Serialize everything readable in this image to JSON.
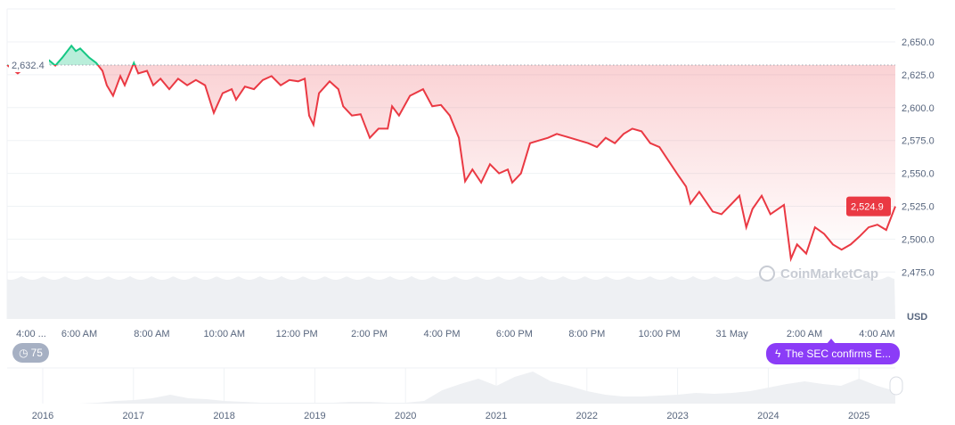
{
  "chart_data": {
    "type": "line",
    "title": "",
    "xlabel": "",
    "ylabel": "USD",
    "ylim": [
      2465,
      2665
    ],
    "y_ticks": [
      "2,650.0",
      "2,625.0",
      "2,600.0",
      "2,575.0",
      "2,550.0",
      "2,525.0",
      "2,500.0",
      "2,475.0"
    ],
    "y_tick_values": [
      2650,
      2625,
      2600,
      2575,
      2550,
      2525,
      2500,
      2475
    ],
    "x_tick_labels": [
      "4:00 ...",
      "6:00 AM",
      "8:00 AM",
      "10:00 AM",
      "12:00 PM",
      "2:00 PM",
      "4:00 PM",
      "6:00 PM",
      "8:00 PM",
      "10:00 PM",
      "31 May",
      "2:00 AM",
      "4:00 AM"
    ],
    "grid": true,
    "reference_value": 2632.4,
    "reference_label": "2,632.4",
    "current_value_label": "2,524.9",
    "colors": {
      "up": "#16c784",
      "down": "#ea3943",
      "event": "#8b3cf7",
      "counter": "#a6b0c3"
    },
    "series": [
      {
        "x": [
          3.33,
          3.62,
          3.99,
          4.48,
          4.65,
          4.84,
          5.09,
          5.21,
          5.33,
          5.58,
          5.77,
          5.94,
          6.06,
          6.23,
          6.43,
          6.55,
          6.8,
          6.92,
          7.16,
          7.33,
          7.53,
          7.77,
          8.01,
          8.26,
          8.5,
          8.75,
          8.99,
          9.23,
          9.48,
          9.6,
          9.84,
          10.09,
          10.33,
          10.57,
          10.82,
          11.06,
          11.3,
          11.48,
          11.6,
          11.72,
          11.87,
          12.16,
          12.4,
          12.53,
          12.77,
          13.01,
          13.26,
          13.5,
          13.75,
          13.87,
          14.06,
          14.36,
          14.72,
          14.97,
          15.21,
          15.45,
          15.7,
          15.87,
          16.07,
          16.31,
          16.55,
          16.8,
          17.04,
          17.16,
          17.4,
          17.65,
          17.89,
          18.14,
          18.38,
          18.75,
          19.24,
          19.48,
          19.72,
          19.97,
          20.21,
          20.45,
          20.7,
          20.94,
          21.19,
          21.43,
          21.67,
          21.92,
          22.04,
          22.28,
          22.65,
          22.89,
          23.14,
          23.38,
          23.57,
          23.74,
          23.99,
          24.23,
          24.6,
          24.79,
          24.96,
          25.21,
          25.45,
          25.7,
          25.94,
          26.18,
          26.43,
          26.67,
          26.92,
          27.16,
          27.4,
          27.65
        ],
        "values": [
          2632.4,
          2626,
          2634,
          2636,
          2632,
          2638,
          2647,
          2643,
          2645,
          2638,
          2634,
          2628,
          2617,
          2609,
          2624,
          2617,
          2634,
          2626,
          2628,
          2617,
          2622,
          2614,
          2622,
          2617,
          2621,
          2617,
          2596,
          2611,
          2614,
          2606,
          2616,
          2614,
          2621,
          2624,
          2617,
          2621,
          2620,
          2622,
          2594,
          2587,
          2611,
          2620,
          2614,
          2601,
          2594,
          2595,
          2577,
          2584,
          2584,
          2601,
          2594,
          2609,
          2614,
          2601,
          2602,
          2594,
          2577,
          2544,
          2553,
          2543,
          2557,
          2550,
          2553,
          2543,
          2550,
          2573,
          2575,
          2577,
          2580,
          2577,
          2573,
          2570,
          2577,
          2573,
          2580,
          2584,
          2582,
          2573,
          2570,
          2560,
          2550,
          2540,
          2527,
          2536,
          2521,
          2519,
          2526,
          2533,
          2509,
          2523,
          2533,
          2519,
          2526,
          2485,
          2496,
          2489,
          2509,
          2504,
          2496,
          2492,
          2496,
          2502,
          2509,
          2511,
          2507,
          2524.9
        ]
      }
    ],
    "navigator_years": [
      "2016",
      "2017",
      "2018",
      "2019",
      "2020",
      "2021",
      "2022",
      "2023",
      "2024",
      "2025"
    ]
  },
  "watermark": "CoinMarketCap",
  "badges": {
    "counter": "75",
    "event": "The SEC confirms E..."
  }
}
